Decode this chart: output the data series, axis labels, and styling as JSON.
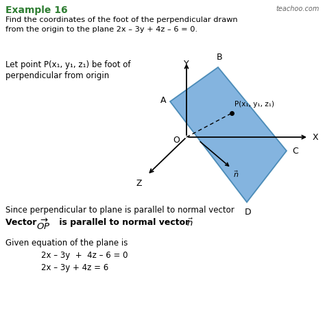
{
  "title": "Example 16",
  "subtitle_line1": "Find the coordinates of the foot of the perpendicular drawn",
  "subtitle_line2": "from the origin to the plane 2x – 3y + 4z – 6 = 0.",
  "watermark": "teachoo.com",
  "body_text_line1": "Let point P(x₁, y₁, z₁) be foot of",
  "body_text_line2": "perpendicular from origin",
  "since_text": "Since perpendicular to plane is parallel to normal vector",
  "given_text": "Given equation of the plane is",
  "eq1": "2x – 3y  +  4z – 6 = 0",
  "eq2": "2x – 3y + 4z = 6",
  "plane_color": "#5b9bd5",
  "plane_alpha": 0.75,
  "plane_edge_color": "#2874a6",
  "background_color": "#ffffff",
  "title_color": "#2e7d32",
  "text_color": "#000000",
  "figsize": [
    4.74,
    4.74
  ],
  "dpi": 100
}
